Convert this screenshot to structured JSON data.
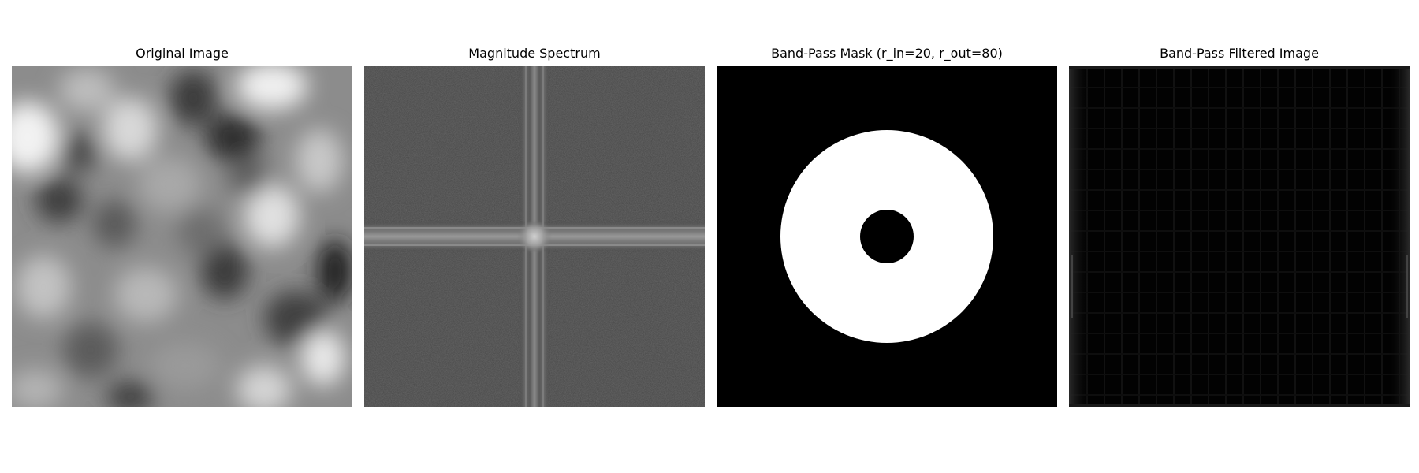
{
  "panels": [
    {
      "title": "Original Image"
    },
    {
      "title": "Magnitude Spectrum"
    },
    {
      "title": "Band-Pass Mask (r_in=20, r_out=80)"
    },
    {
      "title": "Band-Pass Filtered Image"
    }
  ],
  "mask": {
    "r_in": 20,
    "r_out": 80
  },
  "colors": {
    "background": "#ffffff",
    "image_colormap": "gray"
  }
}
